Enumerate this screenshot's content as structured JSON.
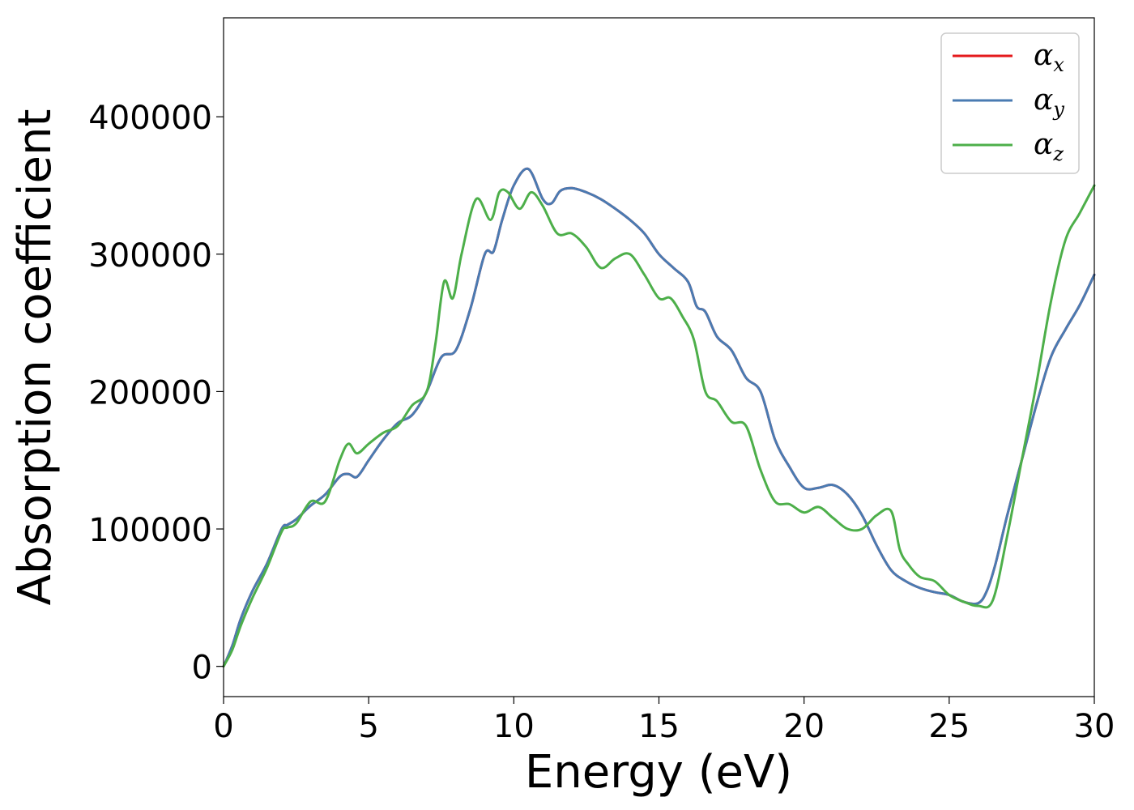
{
  "chart_data": {
    "type": "line",
    "xlabel": "Energy (eV)",
    "ylabel": "Absorption coefficient",
    "xlim": [
      0,
      30
    ],
    "ylim": [
      -22000,
      472000
    ],
    "xticks": [
      0,
      5,
      10,
      15,
      20,
      25,
      30
    ],
    "yticks": [
      0,
      100000,
      200000,
      300000,
      400000
    ],
    "grid": false,
    "legend_position": "top-right",
    "series": [
      {
        "name": "α_x",
        "symbol": "α",
        "subscript": "x",
        "color": "#e41a1c",
        "x": [
          0,
          0.3,
          0.6,
          1.0,
          1.5,
          2.0,
          2.2,
          2.5,
          3.0,
          3.5,
          4.0,
          4.3,
          4.6,
          5.0,
          5.5,
          6.0,
          6.5,
          7.0,
          7.5,
          8.0,
          8.5,
          9.0,
          9.3,
          9.6,
          10.0,
          10.5,
          11.0,
          11.3,
          11.6,
          12.0,
          12.5,
          13.0,
          13.5,
          14.0,
          14.5,
          15.0,
          15.5,
          16.0,
          16.3,
          16.6,
          17.0,
          17.5,
          18.0,
          18.5,
          19.0,
          19.5,
          20.0,
          20.5,
          21.0,
          21.5,
          22.0,
          22.5,
          23.0,
          23.5,
          24.0,
          24.5,
          25.0,
          25.5,
          26.0,
          26.3,
          26.6,
          27.0,
          27.5,
          28.0,
          28.5,
          29.0,
          29.5,
          30.0
        ],
        "y": [
          0,
          15000,
          35000,
          55000,
          75000,
          100000,
          103000,
          107000,
          117000,
          125000,
          138000,
          140000,
          138000,
          150000,
          165000,
          177000,
          183000,
          200000,
          225000,
          230000,
          260000,
          300000,
          302000,
          325000,
          350000,
          362000,
          340000,
          337000,
          346000,
          348000,
          345000,
          340000,
          333000,
          325000,
          315000,
          300000,
          290000,
          280000,
          262000,
          258000,
          240000,
          230000,
          210000,
          200000,
          165000,
          145000,
          130000,
          130000,
          132000,
          125000,
          110000,
          88000,
          70000,
          62000,
          57000,
          54000,
          52000,
          47000,
          46000,
          55000,
          75000,
          110000,
          150000,
          190000,
          225000,
          245000,
          263000,
          285000
        ]
      },
      {
        "name": "α_y",
        "symbol": "α",
        "subscript": "y",
        "color": "#4a7bb2",
        "x": [
          0,
          0.3,
          0.6,
          1.0,
          1.5,
          2.0,
          2.2,
          2.5,
          3.0,
          3.5,
          4.0,
          4.3,
          4.6,
          5.0,
          5.5,
          6.0,
          6.5,
          7.0,
          7.5,
          8.0,
          8.5,
          9.0,
          9.3,
          9.6,
          10.0,
          10.5,
          11.0,
          11.3,
          11.6,
          12.0,
          12.5,
          13.0,
          13.5,
          14.0,
          14.5,
          15.0,
          15.5,
          16.0,
          16.3,
          16.6,
          17.0,
          17.5,
          18.0,
          18.5,
          19.0,
          19.5,
          20.0,
          20.5,
          21.0,
          21.5,
          22.0,
          22.5,
          23.0,
          23.5,
          24.0,
          24.5,
          25.0,
          25.5,
          26.0,
          26.3,
          26.6,
          27.0,
          27.5,
          28.0,
          28.5,
          29.0,
          29.5,
          30.0
        ],
        "y": [
          0,
          15000,
          35000,
          55000,
          75000,
          100000,
          103000,
          107000,
          117000,
          125000,
          138000,
          140000,
          138000,
          150000,
          165000,
          177000,
          183000,
          200000,
          225000,
          230000,
          260000,
          300000,
          302000,
          325000,
          350000,
          362000,
          340000,
          337000,
          346000,
          348000,
          345000,
          340000,
          333000,
          325000,
          315000,
          300000,
          290000,
          280000,
          262000,
          258000,
          240000,
          230000,
          210000,
          200000,
          165000,
          145000,
          130000,
          130000,
          132000,
          125000,
          110000,
          88000,
          70000,
          62000,
          57000,
          54000,
          52000,
          47000,
          46000,
          55000,
          75000,
          110000,
          150000,
          190000,
          225000,
          245000,
          263000,
          285000
        ]
      },
      {
        "name": "α_z",
        "symbol": "α",
        "subscript": "z",
        "color": "#4daf4a",
        "x": [
          0,
          0.3,
          0.6,
          1.0,
          1.5,
          2.0,
          2.2,
          2.5,
          3.0,
          3.5,
          4.0,
          4.3,
          4.6,
          5.0,
          5.5,
          6.0,
          6.5,
          7.0,
          7.3,
          7.6,
          7.9,
          8.2,
          8.7,
          9.2,
          9.5,
          9.8,
          10.2,
          10.6,
          11.0,
          11.5,
          12.0,
          12.5,
          13.0,
          13.5,
          14.0,
          14.5,
          15.0,
          15.4,
          15.8,
          16.2,
          16.6,
          17.0,
          17.5,
          18.0,
          18.5,
          19.0,
          19.5,
          20.0,
          20.5,
          21.0,
          21.5,
          22.0,
          22.5,
          23.0,
          23.3,
          23.6,
          24.0,
          24.5,
          25.0,
          25.5,
          26.0,
          26.5,
          27.0,
          27.5,
          28.0,
          28.5,
          29.0,
          29.5,
          30.0
        ],
        "y": [
          0,
          12000,
          30000,
          50000,
          72000,
          98000,
          101000,
          104000,
          120000,
          120000,
          150000,
          162000,
          155000,
          162000,
          170000,
          175000,
          190000,
          200000,
          235000,
          280000,
          268000,
          300000,
          340000,
          325000,
          345000,
          345000,
          333000,
          345000,
          335000,
          315000,
          315000,
          305000,
          290000,
          297000,
          300000,
          285000,
          268000,
          268000,
          255000,
          238000,
          200000,
          193000,
          178000,
          175000,
          143000,
          120000,
          118000,
          112000,
          116000,
          108000,
          100000,
          100000,
          110000,
          113000,
          85000,
          74000,
          65000,
          62000,
          52000,
          47000,
          44000,
          48000,
          95000,
          150000,
          205000,
          265000,
          310000,
          330000,
          350000
        ]
      }
    ]
  }
}
